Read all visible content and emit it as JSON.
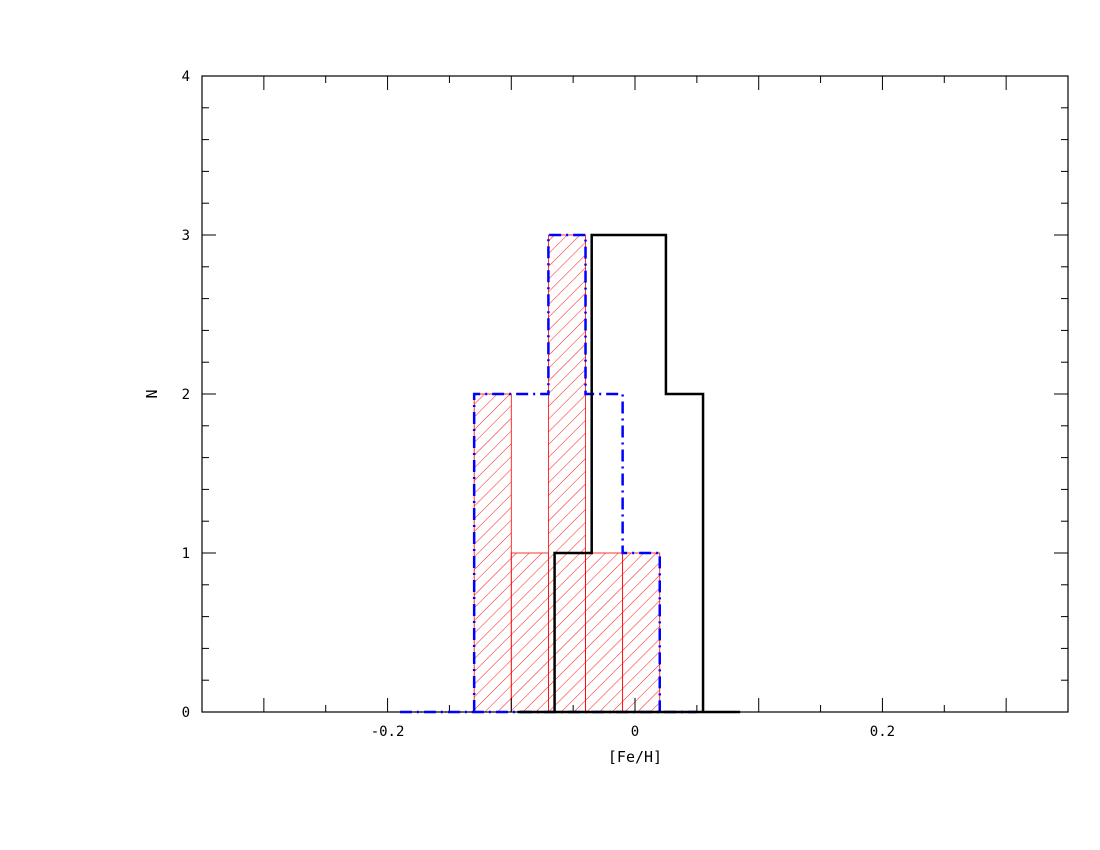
{
  "chart_data": {
    "type": "histogram",
    "xlabel": "[Fe/H]",
    "ylabel": "N",
    "xlim": [
      -0.35,
      0.35
    ],
    "ylim": [
      0,
      4
    ],
    "x_ticks_major": [
      -0.2,
      0,
      0.2
    ],
    "x_tick_labels": [
      "-0.2",
      "0",
      "0.2"
    ],
    "y_ticks_major": [
      0,
      1,
      2,
      3,
      4
    ],
    "y_tick_labels": [
      "0",
      "1",
      "2",
      "3",
      "4"
    ],
    "grid": false,
    "series": [
      {
        "style": "hatched",
        "color": "#ff0000",
        "bins": [
          {
            "x0": -0.13,
            "x1": -0.1,
            "count": 2
          },
          {
            "x0": -0.1,
            "x1": -0.07,
            "count": 1
          },
          {
            "x0": -0.07,
            "x1": -0.04,
            "count": 3
          },
          {
            "x0": -0.04,
            "x1": -0.01,
            "count": 1
          },
          {
            "x0": -0.01,
            "x1": 0.02,
            "count": 1
          }
        ],
        "baseline_dotted": [
          [
            -0.19,
            -0.13
          ],
          [
            0.02,
            0.05
          ]
        ]
      },
      {
        "style": "dash-dot",
        "color": "#0000ff",
        "bins": [
          {
            "x0": -0.13,
            "x1": -0.07,
            "count": 2
          },
          {
            "x0": -0.07,
            "x1": -0.04,
            "count": 3
          },
          {
            "x0": -0.04,
            "x1": -0.01,
            "count": 2
          },
          {
            "x0": -0.01,
            "x1": 0.02,
            "count": 1
          }
        ],
        "baseline_extent": [
          -0.19,
          0.05
        ]
      },
      {
        "style": "solid",
        "color": "#000000",
        "bins": [
          {
            "x0": -0.065,
            "x1": -0.035,
            "count": 1
          },
          {
            "x0": -0.035,
            "x1": 0.025,
            "count": 3
          },
          {
            "x0": 0.025,
            "x1": 0.055,
            "count": 2
          }
        ],
        "baseline_extent": [
          -0.095,
          0.085
        ]
      }
    ]
  }
}
